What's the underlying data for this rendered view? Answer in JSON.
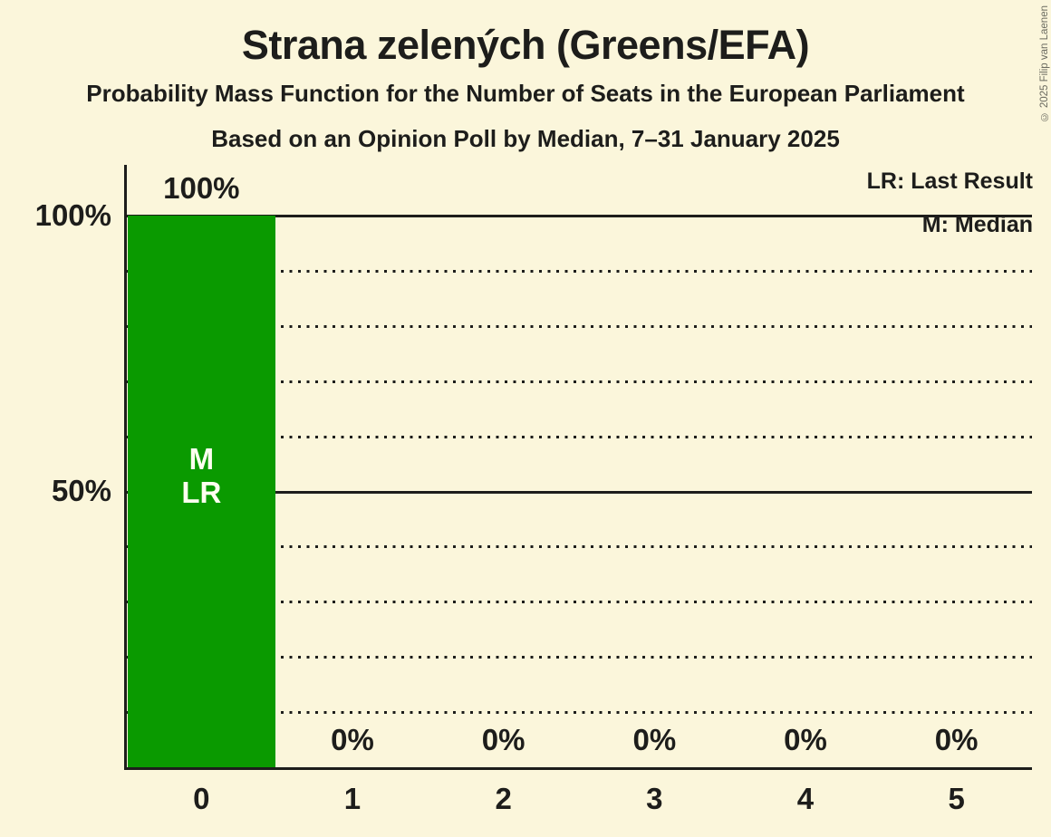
{
  "header": {
    "title": "Strana zelených (Greens/EFA)",
    "subtitle": "Probability Mass Function for the Number of Seats in the European Parliament",
    "poll_info": "Based on an Opinion Poll by Median, 7–31 January 2025",
    "copyright": "© 2025 Filip van Laenen"
  },
  "colors": {
    "background": "#FBF6DB",
    "text": "#1D1D1B",
    "bar": "#0A9A00",
    "bar_annotation": "#FFFFF0",
    "copyright_text": "#6B6B60"
  },
  "chart_data": {
    "type": "bar",
    "title": "Strana zelených (Greens/EFA)",
    "categories": [
      "0",
      "1",
      "2",
      "3",
      "4",
      "5"
    ],
    "values": [
      100,
      0,
      0,
      0,
      0,
      0
    ],
    "value_labels": [
      "100%",
      "0%",
      "0%",
      "0%",
      "0%",
      "0%"
    ],
    "xlabel": "",
    "ylabel": "",
    "ylim": [
      0,
      100
    ],
    "y_ticks": [
      {
        "value": 100,
        "label": "100%"
      },
      {
        "value": 50,
        "label": "50%"
      }
    ],
    "gridlines": {
      "dotted": [
        10,
        20,
        30,
        40,
        60,
        70,
        80,
        90
      ],
      "solid": [
        50,
        100
      ]
    },
    "annotations": [
      {
        "category": "0",
        "lines": [
          "M",
          "LR"
        ]
      }
    ],
    "legend": [
      "LR: Last Result",
      "M: Median"
    ],
    "legend_position": "top-right",
    "grid": true
  }
}
